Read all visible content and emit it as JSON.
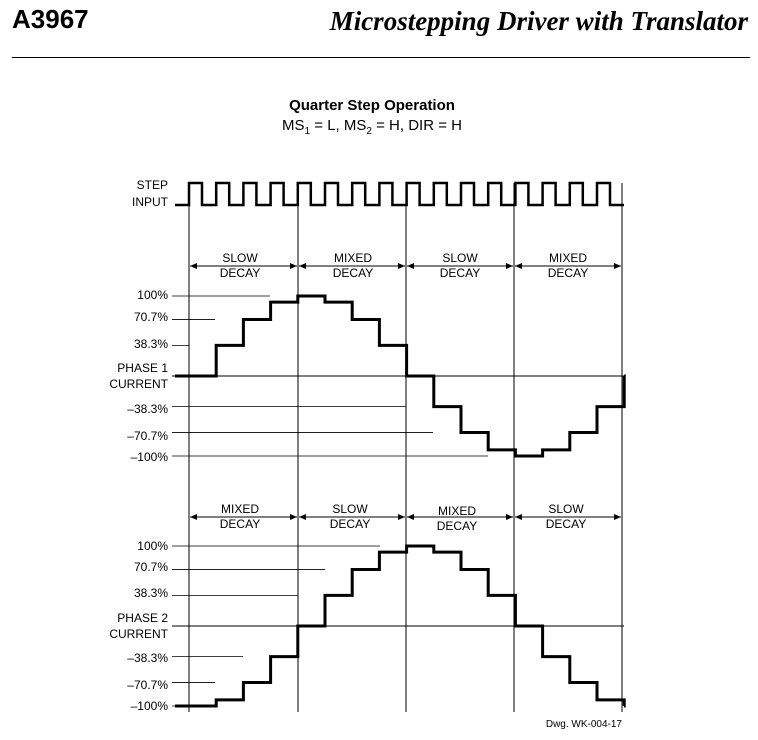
{
  "header": {
    "part_number": "A3967",
    "document_title": "Microstepping Driver with Translator"
  },
  "figure": {
    "title": "Quarter Step Operation",
    "subtitle": {
      "ms1": "MS",
      "ms1_sub": "1",
      "ms1_tail": " = L, ",
      "ms2": "MS",
      "ms2_sub": "2",
      "ms2_tail": " = H, DIR = H"
    },
    "step_label": [
      "STEP",
      "INPUT"
    ],
    "drawing_number": "Dwg. WK-004-17"
  },
  "phase1": {
    "name": [
      "PHASE 1",
      "CURRENT"
    ],
    "levels": [
      "100%",
      "70.7%",
      "38.3%",
      "–38.3%",
      "–70.7%",
      "–100%"
    ],
    "decay_regions": [
      [
        "SLOW",
        "DECAY"
      ],
      [
        "MIXED",
        "DECAY"
      ],
      [
        "SLOW",
        "DECAY"
      ],
      [
        "MIXED",
        "DECAY"
      ]
    ],
    "steps_percent": [
      0,
      38.3,
      70.7,
      92.4,
      100,
      92.4,
      70.7,
      38.3,
      0,
      -38.3,
      -70.7,
      -92.4,
      -100,
      -92.4,
      -70.7,
      -38.3,
      0
    ]
  },
  "phase2": {
    "name": [
      "PHASE 2",
      "CURRENT"
    ],
    "levels": [
      "100%",
      "70.7%",
      "38.3%",
      "–38.3%",
      "–70.7%",
      "–100%"
    ],
    "decay_regions": [
      [
        "MIXED",
        "DECAY"
      ],
      [
        "SLOW",
        "DECAY"
      ],
      [
        "MIXED",
        "DECAY"
      ],
      [
        "SLOW",
        "DECAY"
      ]
    ],
    "steps_percent": [
      -100,
      -92.4,
      -70.7,
      -38.3,
      0,
      38.3,
      70.7,
      92.4,
      100,
      92.4,
      70.7,
      38.3,
      0,
      -38.3,
      -70.7,
      -92.4,
      -100
    ]
  }
}
